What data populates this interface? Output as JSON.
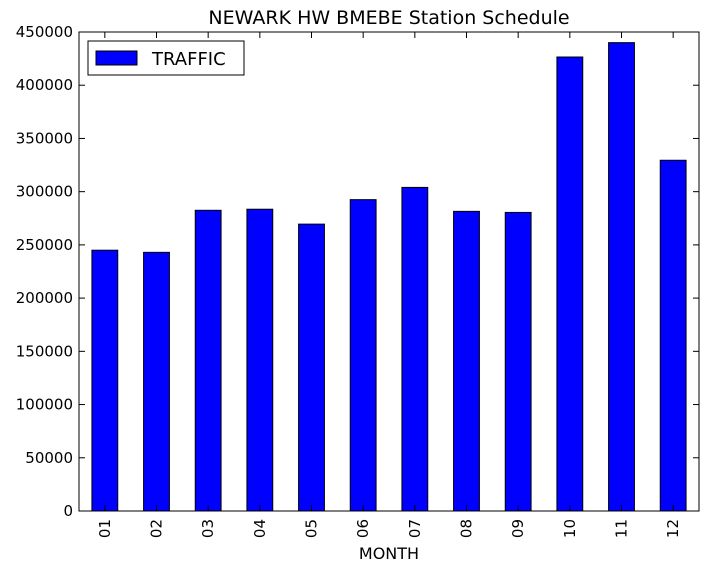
{
  "chart_data": {
    "type": "bar",
    "title": "NEWARK HW BMEBE Station Schedule",
    "xlabel": "MONTH",
    "ylabel": "",
    "categories": [
      "01",
      "02",
      "03",
      "04",
      "05",
      "06",
      "07",
      "08",
      "09",
      "10",
      "11",
      "12"
    ],
    "series": [
      {
        "name": "TRAFFIC",
        "color": "#0000ff",
        "values": [
          245000,
          243000,
          282500,
          283500,
          269500,
          292500,
          304000,
          281500,
          280500,
          426500,
          440000,
          329500
        ]
      }
    ],
    "ylim": [
      0,
      450000
    ],
    "yticks": [
      0,
      50000,
      100000,
      150000,
      200000,
      250000,
      300000,
      350000,
      400000,
      450000
    ],
    "ytick_labels": [
      "0",
      "50000",
      "100000",
      "150000",
      "200000",
      "250000",
      "300000",
      "350000",
      "400000",
      "450000"
    ],
    "grid": false,
    "legend_position": "top-left"
  }
}
